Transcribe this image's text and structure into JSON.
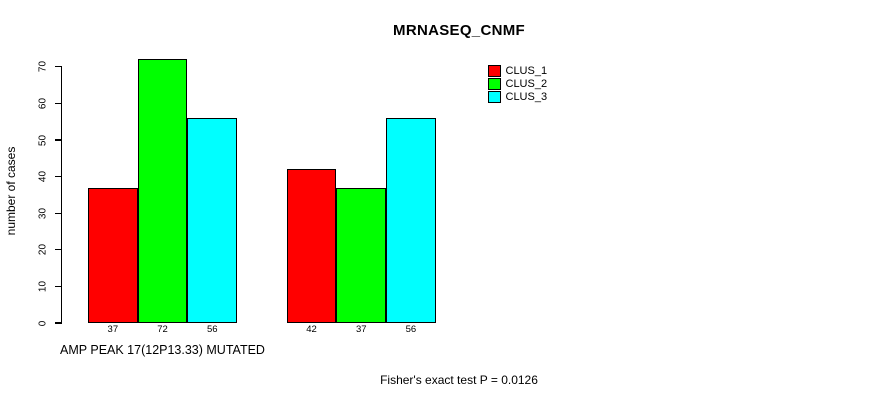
{
  "chart_data": {
    "type": "bar",
    "title": "MRNASEQ_CNMF",
    "ylabel": "number of cases",
    "xlabel": "AMP PEAK 17(12P13.33) MUTATED",
    "annotation": "Fisher's exact test P = 0.0126",
    "groups": 2,
    "series": [
      {
        "name": "CLUS_1",
        "color": "#ff0000",
        "values": [
          37,
          42
        ]
      },
      {
        "name": "CLUS_2",
        "color": "#00ff00",
        "values": [
          72,
          37
        ]
      },
      {
        "name": "CLUS_3",
        "color": "#00ffff",
        "values": [
          56,
          56
        ]
      }
    ],
    "bar_value_labels": [
      [
        "37",
        "72",
        "56"
      ],
      [
        "42",
        "37",
        "56"
      ]
    ],
    "y_ticks": [
      0,
      10,
      20,
      30,
      40,
      50,
      60,
      70
    ],
    "ylim": [
      0,
      72
    ],
    "grid": false,
    "legend_position": "top-right",
    "background_color": "#ffffff",
    "text_color": "#000000"
  }
}
